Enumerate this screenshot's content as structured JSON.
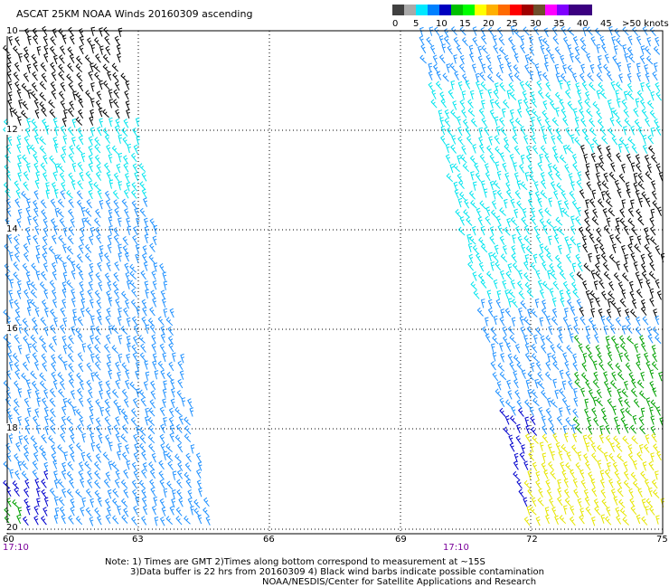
{
  "header": {
    "title": "ASCAT 25KM NOAA Winds 20160309 ascending"
  },
  "legend": {
    "colors": [
      "#404040",
      "#a9a9a9",
      "#00e8ff",
      "#0080ff",
      "#0000c0",
      "#00c000",
      "#00ff00",
      "#ffff00",
      "#ffb000",
      "#ff6a00",
      "#ff0000",
      "#a00000",
      "#6e4f2c",
      "#ff00ff",
      "#8000ff",
      "#3b0080"
    ],
    "labels": [
      "0",
      "5",
      "10",
      "15",
      "20",
      "25",
      "30",
      "35",
      "40",
      "45",
      ">50 knots"
    ]
  },
  "map": {
    "latitude_labels": [
      "10",
      "12",
      "14",
      "16",
      "18",
      "20"
    ],
    "longitude_labels": [
      "60",
      "63",
      "66",
      "69",
      "72",
      "75"
    ],
    "time_labels": [
      "17:10",
      "17:10"
    ],
    "barb_colors": {
      "contaminated": "#000000",
      "knots_5_10": "#00e5ee",
      "knots_10_15": "#1e90ff",
      "knots_15_20": "#0000cd",
      "knots_20_25": "#00a000",
      "knots_25_30": "#e6e600"
    }
  },
  "footer": {
    "note_line1": "Note: 1) Times are GMT 2)Times along bottom correspond to measurement at ~15S",
    "note_line2": "3)Data buffer is 22 hrs from 20160309 4) Black wind barbs indicate possible contamination",
    "note_line3": "NOAA/NESDIS/Center for Satellite Applications and Research"
  }
}
